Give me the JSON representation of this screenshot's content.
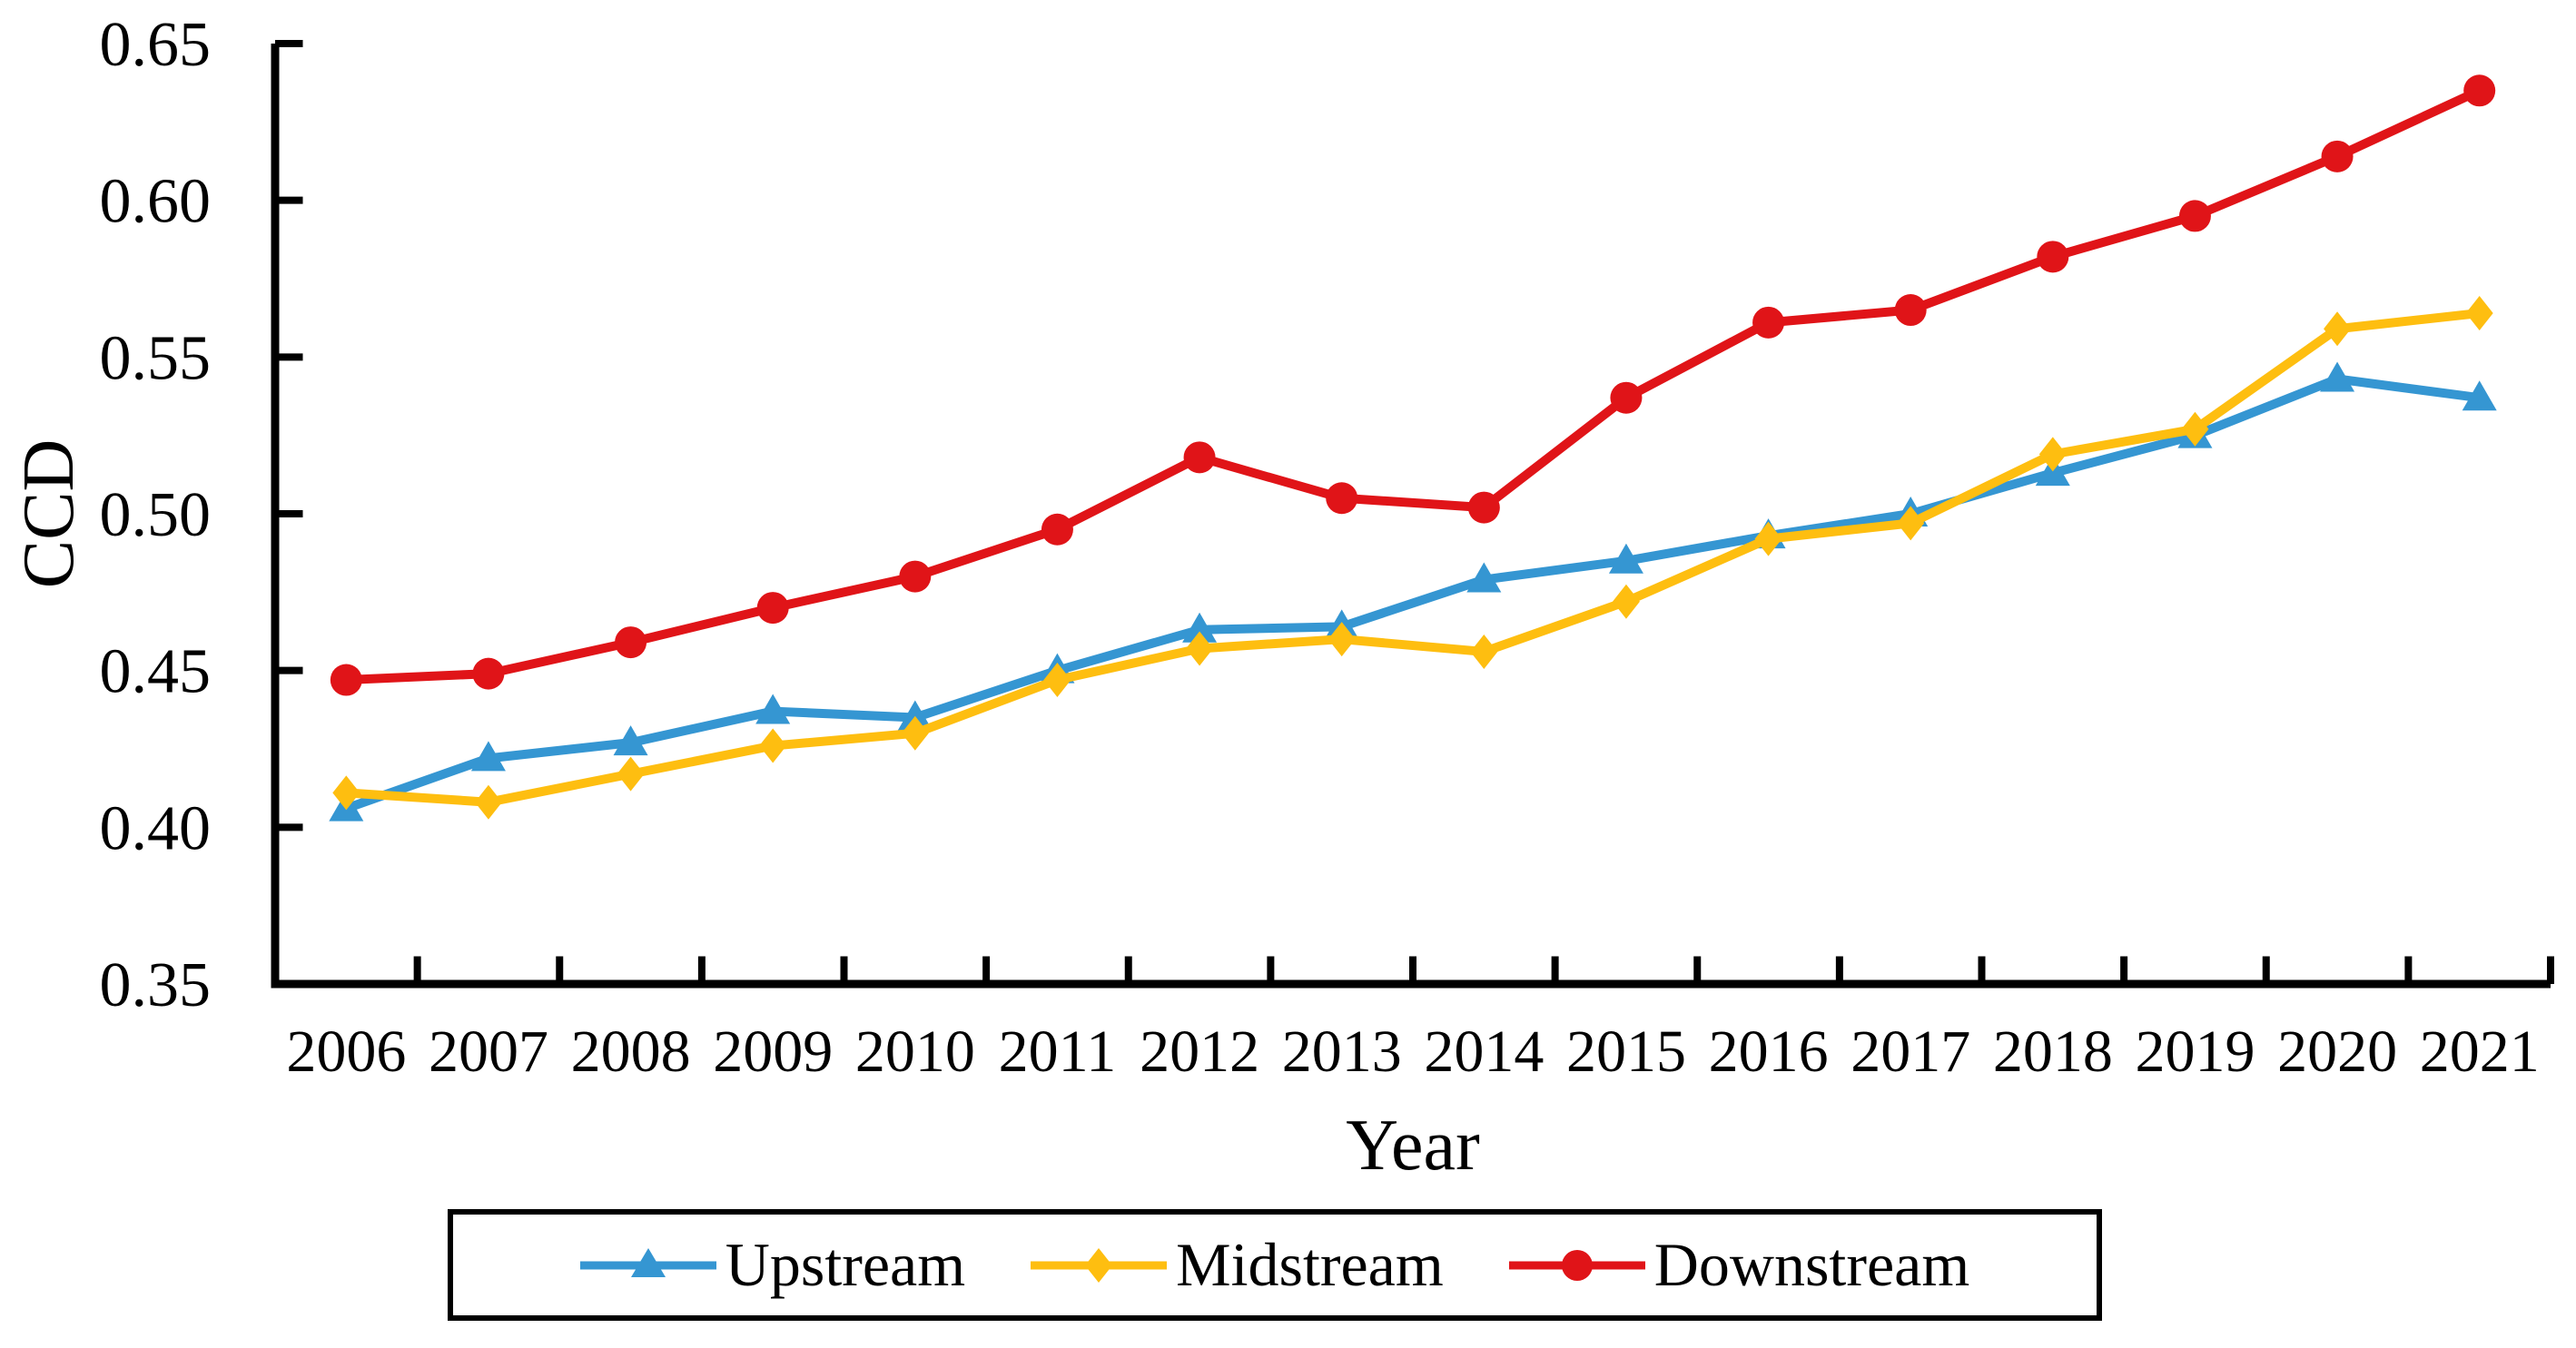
{
  "chart_data": {
    "type": "line",
    "title": "",
    "xlabel": "Year",
    "ylabel": "CCD",
    "categories": [
      "2006",
      "2007",
      "2008",
      "2009",
      "2010",
      "2011",
      "2012",
      "2013",
      "2014",
      "2015",
      "2016",
      "2017",
      "2018",
      "2019",
      "2020",
      "2021"
    ],
    "series": [
      {
        "name": "Upstream",
        "color": "#3596D2",
        "marker": "triangle",
        "values": [
          0.406,
          0.422,
          0.427,
          0.437,
          0.435,
          0.45,
          0.463,
          0.464,
          0.479,
          0.485,
          0.493,
          0.5,
          0.513,
          0.525,
          0.543,
          0.537
        ]
      },
      {
        "name": "Midstream",
        "color": "#FEBE10",
        "marker": "diamond",
        "values": [
          0.411,
          0.408,
          0.417,
          0.426,
          0.43,
          0.447,
          0.457,
          0.46,
          0.456,
          0.472,
          0.492,
          0.497,
          0.519,
          0.527,
          0.559,
          0.564
        ]
      },
      {
        "name": "Downstream",
        "color": "#E01418",
        "marker": "circle",
        "values": [
          0.447,
          0.449,
          0.459,
          0.47,
          0.48,
          0.495,
          0.518,
          0.505,
          0.502,
          0.537,
          0.561,
          0.565,
          0.582,
          0.595,
          0.614,
          0.635
        ]
      }
    ],
    "ylim": [
      0.35,
      0.65
    ],
    "ytick_labels": [
      "0.35",
      "0.40",
      "0.45",
      "0.50",
      "0.55",
      "0.60",
      "0.65"
    ],
    "grid": false,
    "legend_position": "bottom",
    "axis_color": "#000000"
  },
  "legend": {
    "border_color": "#000000"
  }
}
